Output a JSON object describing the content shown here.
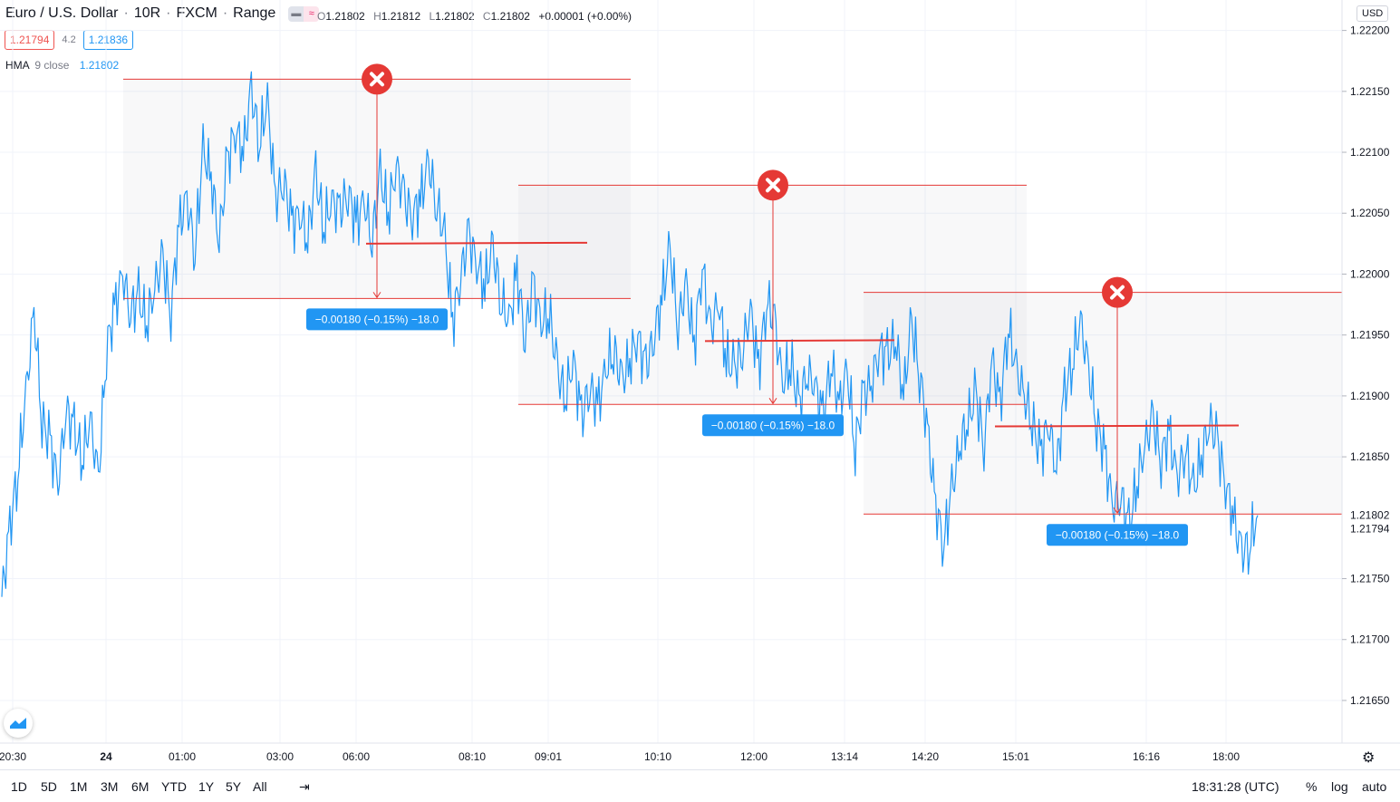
{
  "header": {
    "symbol": "Euro / U.S. Dollar",
    "interval": "10R",
    "exchange": "FXCM",
    "chart_style": "Range",
    "separator": "·"
  },
  "ohlc": {
    "o_label": "O",
    "o": "1.21802",
    "h_label": "H",
    "h": "1.21812",
    "l_label": "L",
    "l": "1.21802",
    "c_label": "C",
    "c": "1.21802",
    "change": "+0.00001 (+0.00%)"
  },
  "quote": {
    "bid": "1.21794",
    "spread": "4.2",
    "ask": "1.21836"
  },
  "indicator": {
    "name": "HMA",
    "params": "9 close",
    "value": "1.21802"
  },
  "currency": "USD",
  "bottom": {
    "ranges": [
      "1D",
      "5D",
      "1M",
      "3M",
      "6M",
      "YTD",
      "1Y",
      "5Y",
      "All"
    ],
    "clock": "18:31:28 (UTC)",
    "pct": "%",
    "log": "log",
    "auto": "auto"
  },
  "colors": {
    "line": "#2196f3",
    "drawing": "#e53935",
    "label_bg": "#2196f3",
    "bid": "#ef5350",
    "ask": "#2196f3"
  },
  "chart_data": {
    "type": "line",
    "series": [
      {
        "values": [
          1.21735,
          1.2179,
          1.2184,
          1.219,
          1.2197,
          1.2188,
          1.2186,
          1.2183,
          1.2189,
          1.2187,
          1.2185,
          1.2188,
          1.2183,
          1.2194,
          1.2197,
          1.22,
          1.2197,
          1.2198,
          1.2196,
          1.2199,
          1.2201,
          1.2197,
          1.2204,
          1.2206,
          1.2202,
          1.221,
          1.2208,
          1.2203,
          1.2209,
          1.2212,
          1.221,
          1.2215,
          1.2211,
          1.2214,
          1.2206,
          1.2208,
          1.2204,
          1.2205,
          1.2203,
          1.2208,
          1.2204,
          1.2206,
          1.2205,
          1.2207,
          1.2204,
          1.2206,
          1.2203,
          1.2208,
          1.2205,
          1.2209,
          1.2206,
          1.2205,
          1.2206,
          1.2209,
          1.2206,
          1.2203,
          1.2196,
          1.22,
          1.2203,
          1.2201,
          1.2199,
          1.2202,
          1.2198,
          1.2196,
          1.22,
          1.2195,
          1.2199,
          1.2196,
          1.2197,
          1.2192,
          1.219,
          1.2193,
          1.2188,
          1.2191,
          1.2189,
          1.2192,
          1.2194,
          1.2191,
          1.2193,
          1.2195,
          1.2192,
          1.2195,
          1.2198,
          1.2202,
          1.2196,
          1.2199,
          1.2194,
          1.2201,
          1.2195,
          1.2198,
          1.2193,
          1.2192,
          1.2194,
          1.2197,
          1.2192,
          1.2198,
          1.2196,
          1.2191,
          1.2193,
          1.2189,
          1.2192,
          1.2191,
          1.2188,
          1.2193,
          1.2189,
          1.2192,
          1.2186,
          1.219,
          1.2191,
          1.2194,
          1.2193,
          1.2195,
          1.219,
          1.2196,
          1.2192,
          1.2187,
          1.2181,
          1.2178,
          1.2182,
          1.2186,
          1.2188,
          1.219,
          1.2186,
          1.2193,
          1.2189,
          1.2196,
          1.2192,
          1.219,
          1.2188,
          1.2185,
          1.2188,
          1.2184,
          1.219,
          1.2193,
          1.2196,
          1.2192,
          1.2188,
          1.2185,
          1.2181,
          1.2182,
          1.2179,
          1.2183,
          1.2186,
          1.2188,
          1.2185,
          1.2187,
          1.2183,
          1.2186,
          1.2182,
          1.2185,
          1.2188,
          1.2186,
          1.2183,
          1.218,
          1.2177,
          1.2178,
          1.21802
        ]
      }
    ],
    "yticks": [
      "1.22200",
      "1.22150",
      "1.22100",
      "1.22050",
      "1.22000",
      "1.21950",
      "1.21900",
      "1.21850",
      "1.21750",
      "1.21700",
      "1.21650"
    ],
    "ylim": [
      1.21615,
      1.22225
    ],
    "xticks": [
      "20:30",
      "24",
      "01:00",
      "03:00",
      "06:00",
      "08:10",
      "09:01",
      "10:10",
      "12:00",
      "13:14",
      "14:20",
      "15:01",
      "16:16",
      "18:00"
    ],
    "last_price_label": "1.21802",
    "bid_price_label": "1.21794",
    "positions": [
      {
        "entry": 1.22025,
        "stop": 1.2216,
        "target": 1.2198,
        "x_start": 0.0,
        "x_end": 1.0,
        "label": "−0.00180 (−0.15%) −18.0"
      },
      {
        "entry": 1.21945,
        "stop": 1.22073,
        "target": 1.21893,
        "x_start": 0.0,
        "x_end": 1.0,
        "label": "−0.00180 (−0.15%) −18.0"
      },
      {
        "entry": 1.21875,
        "stop": 1.21985,
        "target": 1.21803,
        "x_start": 0.0,
        "x_end": 1.0,
        "label": "−0.00180 (−0.15%) −18.0"
      }
    ],
    "grid": true
  }
}
